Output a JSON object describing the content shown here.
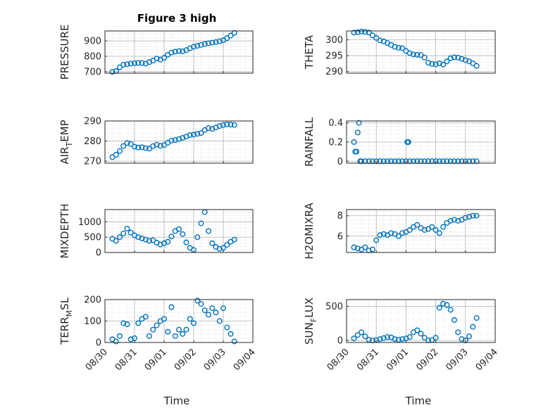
{
  "figure_title": "Figure 3 high",
  "colors": {
    "marker": "#0072BD",
    "axes": "#262626",
    "grid": "#b5b5b5",
    "minor_grid": "#dedede"
  },
  "chart_data": [
    {
      "type": "scatter",
      "ylabel": "PRESSURE",
      "ylim": [
        690,
        965
      ],
      "yticks": [
        700,
        800,
        900
      ],
      "x": [
        "08/30 06:00",
        "08/30 09:00",
        "08/30 12:00",
        "08/30 15:00",
        "08/30 18:00",
        "08/30 21:00",
        "08/31 00:00",
        "08/31 03:00",
        "08/31 06:00",
        "08/31 09:00",
        "08/31 12:00",
        "08/31 15:00",
        "08/31 18:00",
        "08/31 21:00",
        "09/01 00:00",
        "09/01 03:00",
        "09/01 06:00",
        "09/01 09:00",
        "09/01 12:00",
        "09/01 15:00",
        "09/01 18:00",
        "09/01 21:00",
        "09/02 00:00",
        "09/02 03:00",
        "09/02 06:00",
        "09/02 09:00",
        "09/02 12:00",
        "09/02 15:00",
        "09/02 18:00",
        "09/02 21:00",
        "09/03 00:00",
        "09/03 03:00",
        "09/03 06:00",
        "09/03 09:00"
      ],
      "values": [
        698,
        703,
        728,
        745,
        748,
        752,
        755,
        757,
        756,
        752,
        762,
        772,
        785,
        778,
        790,
        810,
        824,
        830,
        834,
        832,
        840,
        852,
        862,
        868,
        874,
        880,
        885,
        889,
        893,
        898,
        904,
        918,
        935,
        952
      ]
    },
    {
      "type": "scatter",
      "ylabel": "THETA",
      "ylim": [
        289.5,
        302.8
      ],
      "yticks": [
        290,
        295,
        300
      ],
      "x": [
        "08/30 06:00",
        "08/30 09:00",
        "08/30 12:00",
        "08/30 15:00",
        "08/30 18:00",
        "08/30 21:00",
        "08/31 00:00",
        "08/31 03:00",
        "08/31 06:00",
        "08/31 09:00",
        "08/31 12:00",
        "08/31 15:00",
        "08/31 18:00",
        "08/31 21:00",
        "09/01 00:00",
        "09/01 03:00",
        "09/01 06:00",
        "09/01 09:00",
        "09/01 12:00",
        "09/01 15:00",
        "09/01 18:00",
        "09/01 21:00",
        "09/02 00:00",
        "09/02 03:00",
        "09/02 06:00",
        "09/02 09:00",
        "09/02 12:00",
        "09/02 15:00",
        "09/02 18:00",
        "09/02 21:00",
        "09/03 00:00",
        "09/03 03:00",
        "09/03 06:00",
        "09/03 09:00"
      ],
      "values": [
        302.3,
        302.4,
        302.6,
        302.5,
        302.3,
        301.4,
        300.6,
        299.8,
        299.5,
        299.0,
        298.4,
        297.8,
        297.5,
        297.4,
        296.5,
        295.8,
        295.4,
        295.3,
        295.2,
        294.4,
        292.8,
        292.4,
        292.3,
        292.6,
        292.2,
        293.2,
        294.2,
        294.5,
        294.4,
        294.0,
        293.6,
        293.2,
        292.6,
        291.8
      ]
    },
    {
      "type": "scatter",
      "ylabel": "AIR_TEMP",
      "ylabel_parts": [
        "AIR",
        "T",
        "EMP"
      ],
      "ylim": [
        269,
        290
      ],
      "yticks": [
        270,
        280,
        290
      ],
      "x": [
        "08/30 06:00",
        "08/30 09:00",
        "08/30 12:00",
        "08/30 15:00",
        "08/30 18:00",
        "08/30 21:00",
        "08/31 00:00",
        "08/31 03:00",
        "08/31 06:00",
        "08/31 09:00",
        "08/31 12:00",
        "08/31 15:00",
        "08/31 18:00",
        "08/31 21:00",
        "09/01 00:00",
        "09/01 03:00",
        "09/01 06:00",
        "09/01 09:00",
        "09/01 12:00",
        "09/01 15:00",
        "09/01 18:00",
        "09/01 21:00",
        "09/02 00:00",
        "09/02 03:00",
        "09/02 06:00",
        "09/02 09:00",
        "09/02 12:00",
        "09/02 15:00",
        "09/02 18:00",
        "09/02 21:00",
        "09/03 00:00",
        "09/03 03:00",
        "09/03 06:00",
        "09/03 09:00"
      ],
      "values": [
        272.0,
        273.2,
        275.0,
        277.5,
        279.0,
        278.5,
        277.2,
        276.8,
        276.9,
        276.5,
        276.2,
        277.5,
        278.2,
        277.6,
        278.0,
        279.2,
        280.2,
        280.5,
        281.0,
        281.6,
        282.2,
        283.0,
        283.2,
        283.6,
        284.0,
        285.5,
        286.4,
        286.0,
        286.8,
        287.5,
        288.0,
        288.3,
        288.2,
        288.0
      ]
    },
    {
      "type": "scatter",
      "ylabel": "RAINFALL",
      "ylim": [
        -0.02,
        0.42
      ],
      "yticks": [
        0,
        0.2,
        0.4
      ],
      "x": [
        "08/30 06:00",
        "08/30 07:00",
        "08/30 08:00",
        "08/30 09:00",
        "08/30 10:00",
        "08/30 11:00",
        "08/30 12:00",
        "08/30 15:00",
        "08/30 18:00",
        "08/30 21:00",
        "08/31 00:00",
        "08/31 03:00",
        "08/31 06:00",
        "08/31 09:00",
        "08/31 12:00",
        "08/31 15:00",
        "08/31 18:00",
        "08/31 21:00",
        "09/01 00:00",
        "09/01 01:00",
        "09/01 02:00",
        "09/01 03:00",
        "09/01 06:00",
        "09/01 09:00",
        "09/01 12:00",
        "09/01 15:00",
        "09/01 18:00",
        "09/01 21:00",
        "09/02 00:00",
        "09/02 03:00",
        "09/02 06:00",
        "09/02 09:00",
        "09/02 12:00",
        "09/02 15:00",
        "09/02 18:00",
        "09/02 21:00",
        "09/03 00:00",
        "09/03 03:00",
        "09/03 06:00",
        "09/03 09:00"
      ],
      "values": [
        0.2,
        0.1,
        0.1,
        0.3,
        0.4,
        0.0,
        0.0,
        0.0,
        0.0,
        0.0,
        0.0,
        0.0,
        0.0,
        0.0,
        0.0,
        0.0,
        0.0,
        0.0,
        0.0,
        0.2,
        0.2,
        0.0,
        0.0,
        0.0,
        0.0,
        0.0,
        0.0,
        0.0,
        0.0,
        0.0,
        0.0,
        0.0,
        0.0,
        0.0,
        0.0,
        0.0,
        0.0,
        0.0,
        0.0,
        0.0
      ]
    },
    {
      "type": "scatter",
      "ylabel": "MIXDEPTH",
      "ylim": [
        0,
        1400
      ],
      "yticks": [
        0,
        500,
        1000
      ],
      "x": [
        "08/30 06:00",
        "08/30 09:00",
        "08/30 12:00",
        "08/30 15:00",
        "08/30 18:00",
        "08/30 21:00",
        "08/31 00:00",
        "08/31 03:00",
        "08/31 06:00",
        "08/31 09:00",
        "08/31 12:00",
        "08/31 15:00",
        "08/31 18:00",
        "08/31 21:00",
        "09/01 00:00",
        "09/01 03:00",
        "09/01 06:00",
        "09/01 09:00",
        "09/01 12:00",
        "09/01 15:00",
        "09/01 18:00",
        "09/01 21:00",
        "09/02 00:00",
        "09/02 03:00",
        "09/02 06:00",
        "09/02 09:00",
        "09/02 12:00",
        "09/02 15:00",
        "09/02 18:00",
        "09/02 21:00",
        "09/03 00:00",
        "09/03 03:00",
        "09/03 06:00",
        "09/03 09:00"
      ],
      "values": [
        450,
        380,
        500,
        620,
        780,
        650,
        560,
        500,
        460,
        420,
        380,
        400,
        320,
        260,
        300,
        350,
        520,
        700,
        760,
        600,
        330,
        150,
        80,
        500,
        950,
        1320,
        700,
        300,
        180,
        120,
        150,
        250,
        350,
        420
      ]
    },
    {
      "type": "scatter",
      "ylabel": "H2OMIXRA",
      "ylim": [
        4.4,
        8.6
      ],
      "yticks": [
        6,
        8
      ],
      "x": [
        "08/30 06:00",
        "08/30 09:00",
        "08/30 12:00",
        "08/30 15:00",
        "08/30 18:00",
        "08/30 21:00",
        "08/31 00:00",
        "08/31 03:00",
        "08/31 06:00",
        "08/31 09:00",
        "08/31 12:00",
        "08/31 15:00",
        "08/31 18:00",
        "08/31 21:00",
        "09/01 00:00",
        "09/01 03:00",
        "09/01 06:00",
        "09/01 09:00",
        "09/01 12:00",
        "09/01 15:00",
        "09/01 18:00",
        "09/01 21:00",
        "09/02 00:00",
        "09/02 03:00",
        "09/02 06:00",
        "09/02 09:00",
        "09/02 12:00",
        "09/02 15:00",
        "09/02 18:00",
        "09/02 21:00",
        "09/03 00:00",
        "09/03 03:00",
        "09/03 06:00",
        "09/03 09:00"
      ],
      "values": [
        4.9,
        4.8,
        4.7,
        4.9,
        4.6,
        4.7,
        5.6,
        6.1,
        6.2,
        6.1,
        6.3,
        6.2,
        6.0,
        6.3,
        6.4,
        6.6,
        6.9,
        7.1,
        6.8,
        6.6,
        6.7,
        6.9,
        6.6,
        6.3,
        6.9,
        7.3,
        7.5,
        7.6,
        7.5,
        7.6,
        7.8,
        7.9,
        8.0,
        8.0
      ]
    },
    {
      "type": "scatter",
      "ylabel": "TERR_MSL",
      "ylabel_parts": [
        "TERR",
        "M",
        "SL"
      ],
      "ylim": [
        0,
        200
      ],
      "yticks": [
        0,
        100,
        200
      ],
      "x": [
        "08/30 06:00",
        "08/30 09:00",
        "08/30 12:00",
        "08/30 15:00",
        "08/30 18:00",
        "08/30 21:00",
        "08/31 00:00",
        "08/31 03:00",
        "08/31 06:00",
        "08/31 09:00",
        "08/31 12:00",
        "08/31 15:00",
        "08/31 18:00",
        "08/31 21:00",
        "09/01 00:00",
        "09/01 03:00",
        "09/01 06:00",
        "09/01 09:00",
        "09/01 12:00",
        "09/01 15:00",
        "09/01 18:00",
        "09/01 21:00",
        "09/02 00:00",
        "09/02 03:00",
        "09/02 06:00",
        "09/02 09:00",
        "09/02 12:00",
        "09/02 15:00",
        "09/02 18:00",
        "09/02 21:00",
        "09/03 00:00",
        "09/03 03:00",
        "09/03 06:00",
        "09/03 09:00"
      ],
      "values": [
        15,
        5,
        30,
        90,
        85,
        15,
        20,
        90,
        110,
        120,
        30,
        60,
        80,
        100,
        110,
        50,
        165,
        30,
        60,
        40,
        60,
        110,
        90,
        195,
        180,
        150,
        130,
        160,
        140,
        100,
        160,
        70,
        40,
        5
      ]
    },
    {
      "type": "scatter",
      "ylabel": "SUN_FLUX",
      "ylabel_parts": [
        "SUN",
        "F",
        "LUX"
      ],
      "ylim": [
        -30,
        600
      ],
      "yticks": [
        0,
        500
      ],
      "x": [
        "08/30 06:00",
        "08/30 09:00",
        "08/30 12:00",
        "08/30 15:00",
        "08/30 18:00",
        "08/30 21:00",
        "08/31 00:00",
        "08/31 03:00",
        "08/31 06:00",
        "08/31 09:00",
        "08/31 12:00",
        "08/31 15:00",
        "08/31 18:00",
        "08/31 21:00",
        "09/01 00:00",
        "09/01 03:00",
        "09/01 06:00",
        "09/01 09:00",
        "09/01 12:00",
        "09/01 15:00",
        "09/01 18:00",
        "09/01 21:00",
        "09/02 00:00",
        "09/02 03:00",
        "09/02 06:00",
        "09/02 09:00",
        "09/02 12:00",
        "09/02 15:00",
        "09/02 18:00",
        "09/02 21:00",
        "09/03 00:00",
        "09/03 03:00",
        "09/03 06:00",
        "09/03 09:00"
      ],
      "values": [
        30,
        80,
        120,
        60,
        10,
        0,
        5,
        20,
        35,
        50,
        45,
        20,
        10,
        20,
        30,
        50,
        120,
        150,
        100,
        40,
        0,
        5,
        40,
        480,
        540,
        520,
        450,
        300,
        120,
        20,
        0,
        60,
        200,
        330
      ]
    }
  ],
  "x_axis": {
    "tick_labels": [
      "08/30",
      "08/31",
      "09/01",
      "09/02",
      "09/03",
      "09/04"
    ],
    "xlim": [
      "08/30 00:00",
      "09/04 00:00"
    ],
    "xlabel": "Time"
  }
}
